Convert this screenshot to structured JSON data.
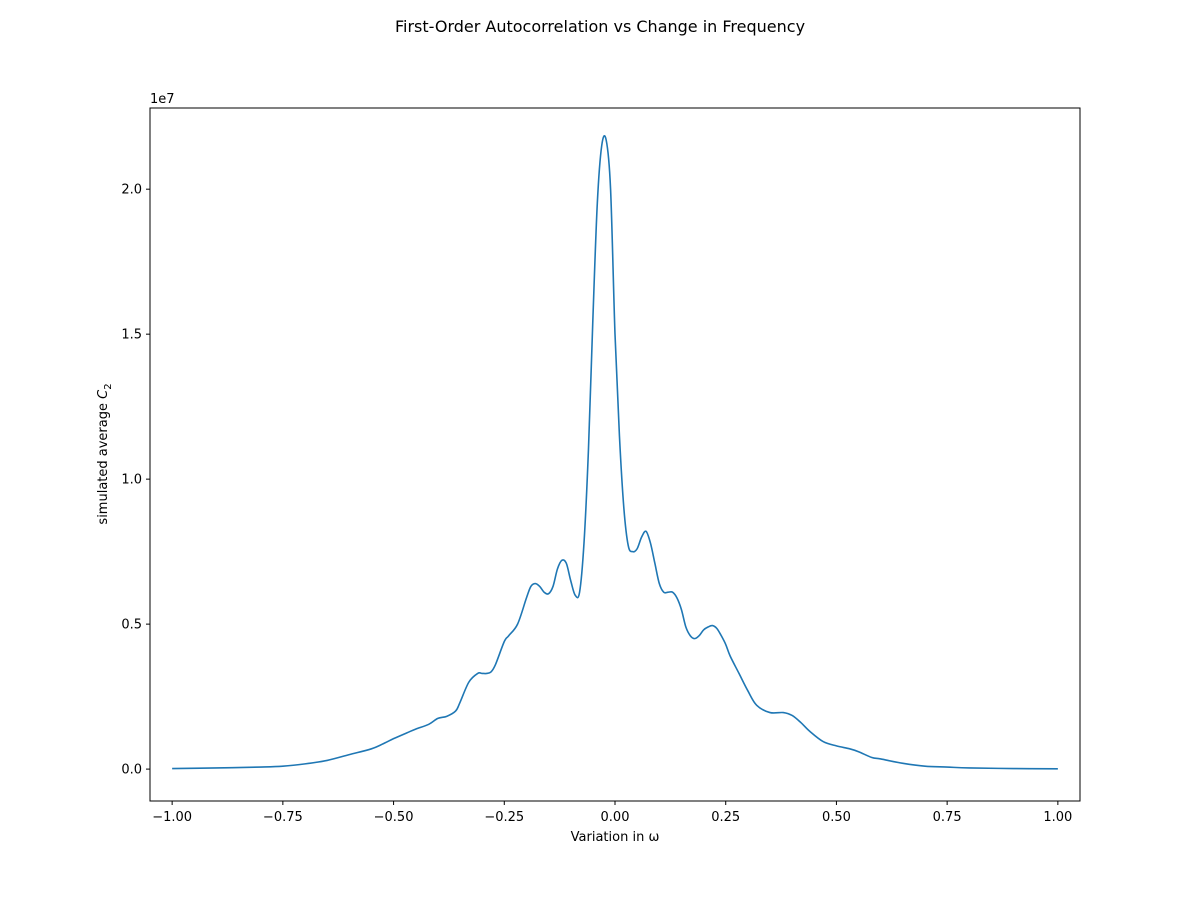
{
  "chart_data": {
    "type": "line",
    "title": "First-Order Autocorrelation vs Change in Frequency",
    "xlabel": "Variation in ω",
    "ylabel": {
      "text": "simulated average ",
      "symbol": "C",
      "subscript": "2"
    },
    "y_offset_label": "1e7",
    "xlim": [
      -1.05,
      1.05
    ],
    "ylim": [
      -1.1,
      22.8
    ],
    "y_scale_note": "values in units of 1e7",
    "x_ticks": [
      {
        "value": -1.0,
        "label": "−1.00"
      },
      {
        "value": -0.75,
        "label": "−0.75"
      },
      {
        "value": -0.5,
        "label": "−0.50"
      },
      {
        "value": -0.25,
        "label": "−0.25"
      },
      {
        "value": 0.0,
        "label": "0.00"
      },
      {
        "value": 0.25,
        "label": "0.25"
      },
      {
        "value": 0.5,
        "label": "0.50"
      },
      {
        "value": 0.75,
        "label": "0.75"
      },
      {
        "value": 1.0,
        "label": "1.00"
      }
    ],
    "y_ticks": [
      {
        "value": 0,
        "label": "0.0"
      },
      {
        "value": 5,
        "label": "0.5"
      },
      {
        "value": 10,
        "label": "1.0"
      },
      {
        "value": 15,
        "label": "1.5"
      },
      {
        "value": 20,
        "label": "2.0"
      }
    ],
    "grid": false,
    "legend": "none",
    "color": "#1f77b4",
    "series": [
      {
        "x": [
          -1.0,
          -0.9,
          -0.8,
          -0.75,
          -0.7,
          -0.65,
          -0.6,
          -0.55,
          -0.52,
          -0.5,
          -0.47,
          -0.45,
          -0.42,
          -0.4,
          -0.38,
          -0.36,
          -0.35,
          -0.33,
          -0.31,
          -0.3,
          -0.29,
          -0.28,
          -0.27,
          -0.25,
          -0.24,
          -0.22,
          -0.2,
          -0.19,
          -0.18,
          -0.17,
          -0.16,
          -0.15,
          -0.14,
          -0.13,
          -0.12,
          -0.11,
          -0.1,
          -0.09,
          -0.08,
          -0.07,
          -0.06,
          -0.05,
          -0.04,
          -0.03,
          -0.02,
          -0.01,
          0.0,
          0.01,
          0.02,
          0.03,
          0.04,
          0.05,
          0.06,
          0.07,
          0.08,
          0.09,
          0.1,
          0.11,
          0.12,
          0.13,
          0.14,
          0.15,
          0.16,
          0.17,
          0.18,
          0.19,
          0.2,
          0.21,
          0.22,
          0.23,
          0.24,
          0.25,
          0.26,
          0.28,
          0.3,
          0.32,
          0.35,
          0.38,
          0.4,
          0.42,
          0.44,
          0.47,
          0.5,
          0.53,
          0.55,
          0.58,
          0.6,
          0.65,
          0.7,
          0.75,
          0.8,
          0.9,
          1.0
        ],
        "y": [
          0.02,
          0.04,
          0.07,
          0.1,
          0.18,
          0.3,
          0.5,
          0.7,
          0.9,
          1.05,
          1.25,
          1.38,
          1.55,
          1.75,
          1.82,
          2.0,
          2.3,
          3.0,
          3.3,
          3.3,
          3.3,
          3.35,
          3.6,
          4.4,
          4.6,
          5.0,
          5.9,
          6.3,
          6.4,
          6.3,
          6.1,
          6.05,
          6.3,
          6.9,
          7.2,
          7.1,
          6.5,
          6.0,
          6.1,
          7.8,
          11.0,
          15.5,
          19.5,
          21.5,
          21.7,
          20.0,
          15.0,
          11.5,
          9.0,
          7.7,
          7.5,
          7.6,
          8.0,
          8.2,
          7.8,
          7.1,
          6.4,
          6.1,
          6.1,
          6.1,
          5.9,
          5.5,
          4.9,
          4.6,
          4.5,
          4.6,
          4.8,
          4.9,
          4.95,
          4.85,
          4.6,
          4.3,
          3.9,
          3.3,
          2.7,
          2.2,
          1.95,
          1.95,
          1.85,
          1.6,
          1.3,
          0.95,
          0.8,
          0.7,
          0.6,
          0.4,
          0.35,
          0.2,
          0.1,
          0.07,
          0.04,
          0.02,
          0.01
        ]
      }
    ]
  }
}
